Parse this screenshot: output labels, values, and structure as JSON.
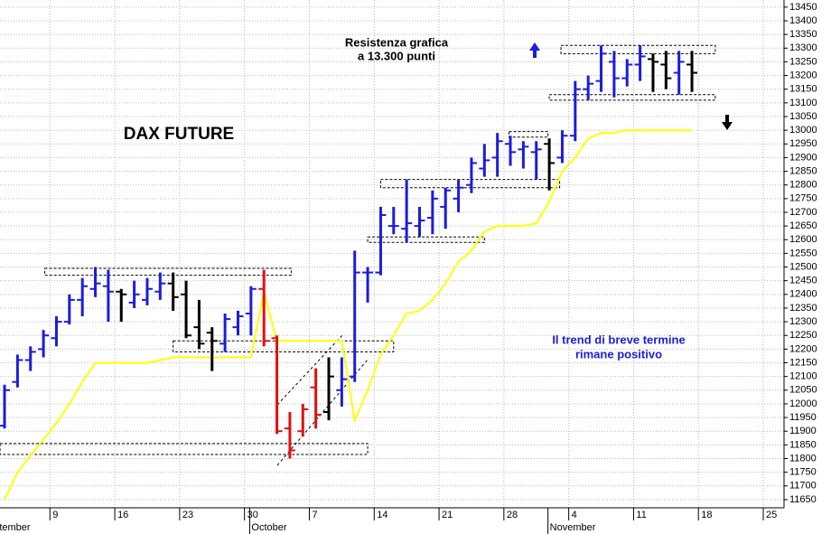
{
  "chart_data": {
    "type": "ohlc",
    "title": "DAX FUTURE",
    "categories": [
      null,
      null,
      null,
      null,
      null,
      null,
      null,
      null,
      null,
      null,
      null,
      null,
      null,
      null,
      null,
      null,
      null,
      null,
      null,
      null,
      null,
      null,
      null,
      null,
      null,
      null,
      null,
      null,
      null,
      null,
      null,
      null,
      null,
      null,
      null,
      null,
      null,
      null,
      null,
      null,
      null,
      null,
      null,
      null,
      null,
      null,
      null,
      null,
      null,
      null,
      null,
      null,
      null,
      null
    ],
    "open": [
      11920,
      12080,
      12160,
      12200,
      12240,
      12300,
      12380,
      12420,
      12430,
      12410,
      12370,
      12380,
      12410,
      12440,
      12400,
      12280,
      12260,
      12220,
      12280,
      12330,
      12420,
      12240,
      11910,
      11900,
      12060,
      11970,
      12050,
      12100,
      12480,
      12480,
      12650,
      12640,
      12650,
      12680,
      12720,
      12750,
      12800,
      12860,
      12900,
      12950,
      12930,
      12920,
      12950,
      12900,
      12980,
      13150,
      13180,
      13250,
      13190,
      13240,
      13260,
      13240,
      13210,
      13240
    ],
    "high": [
      12070,
      12180,
      12210,
      12270,
      12320,
      12400,
      12460,
      12500,
      12490,
      12420,
      12450,
      12460,
      12480,
      12480,
      12450,
      12380,
      12280,
      12330,
      12340,
      12430,
      12490,
      12250,
      11970,
      12000,
      12130,
      12170,
      12170,
      12560,
      12500,
      12720,
      12720,
      12820,
      12720,
      12780,
      12790,
      12820,
      12900,
      12950,
      12990,
      12980,
      12960,
      12960,
      12970,
      13000,
      13180,
      13200,
      13310,
      13290,
      13260,
      13310,
      13280,
      13290,
      13290,
      13290
    ],
    "low": [
      11910,
      12060,
      12120,
      12170,
      12210,
      12290,
      12320,
      12390,
      12300,
      12300,
      12350,
      12360,
      12380,
      12340,
      12240,
      12200,
      12120,
      12190,
      12250,
      12250,
      12210,
      11890,
      11800,
      11880,
      11910,
      11940,
      11990,
      12080,
      12370,
      12470,
      12620,
      12590,
      12610,
      12620,
      12640,
      12700,
      12770,
      12830,
      12830,
      12870,
      12860,
      12820,
      12780,
      12880,
      12960,
      13110,
      13140,
      13120,
      13160,
      13180,
      13140,
      13150,
      13130,
      13140
    ],
    "close": [
      12050,
      12160,
      12190,
      12250,
      12300,
      12380,
      12430,
      12440,
      12410,
      12400,
      12400,
      12420,
      12440,
      12390,
      12250,
      12220,
      12230,
      12310,
      12320,
      12420,
      12230,
      11900,
      11830,
      11980,
      11960,
      12100,
      12090,
      12480,
      12480,
      12690,
      12650,
      12660,
      12670,
      12750,
      12780,
      12790,
      12880,
      12890,
      12960,
      12920,
      12940,
      12930,
      12880,
      12980,
      13150,
      13170,
      13280,
      13190,
      13240,
      13270,
      13250,
      13190,
      13250,
      13210
    ],
    "colors": [
      "#1c1cdc",
      "#1c1cdc",
      "#1c1cdc",
      "#1c1cdc",
      "#1c1cdc",
      "#1c1cdc",
      "#1c1cdc",
      "#1c1cdc",
      "#1c1cdc",
      "#000000",
      "#1c1cdc",
      "#1c1cdc",
      "#1c1cdc",
      "#000000",
      "#000000",
      "#000000",
      "#000000",
      "#1c1cdc",
      "#1c1cdc",
      "#1c1cdc",
      "#e01010",
      "#e01010",
      "#e01010",
      "#e01010",
      "#e01010",
      "#000000",
      "#1c1cdc",
      "#1c1cdc",
      "#1c1cdc",
      "#1c1cdc",
      "#1c1cdc",
      "#1c1cdc",
      "#1c1cdc",
      "#1c1cdc",
      "#1c1cdc",
      "#1c1cdc",
      "#1c1cdc",
      "#1c1cdc",
      "#1c1cdc",
      "#1c1cdc",
      "#1c1cdc",
      "#1c1cdc",
      "#000000",
      "#1c1cdc",
      "#1c1cdc",
      "#1c1cdc",
      "#1c1cdc",
      "#1c1cdc",
      "#1c1cdc",
      "#1c1cdc",
      "#000000",
      "#000000",
      "#1c1cdc",
      "#000000"
    ],
    "trend_line": {
      "color": "#ffff00",
      "values": [
        11650,
        11750,
        11810,
        11870,
        11930,
        12000,
        12080,
        12150,
        12150,
        12150,
        12150,
        12150,
        12160,
        12170,
        12170,
        12170,
        12170,
        12170,
        12170,
        12170,
        12410,
        12230,
        12230,
        12230,
        12230,
        12230,
        12230,
        11940,
        12050,
        12180,
        12250,
        12330,
        12340,
        12380,
        12440,
        12520,
        12560,
        12630,
        12650,
        12650,
        12650,
        12660,
        12740,
        12850,
        12900,
        12970,
        12990,
        12990,
        13000,
        13000,
        13000,
        13000,
        13000,
        13000
      ]
    },
    "zones": [
      {
        "x": [
          3.1,
          22.1
        ],
        "y": [
          12470,
          12495
        ]
      },
      {
        "x": [
          13,
          30
        ],
        "y": [
          12190,
          12230
        ]
      },
      {
        "x": [
          -0.35,
          28
        ],
        "y": [
          11815,
          11855
        ]
      },
      {
        "x": [
          28,
          37
        ],
        "y": [
          12590,
          12610
        ]
      },
      {
        "x": [
          29,
          42.8
        ],
        "y": [
          12790,
          12820
        ]
      },
      {
        "x": [
          38.9,
          41.9
        ],
        "y": [
          12975,
          12995
        ]
      },
      {
        "x": [
          42.9,
          54.8
        ],
        "y": [
          13280,
          13310
        ]
      },
      {
        "x": [
          42,
          54.8
        ],
        "y": [
          13110,
          13130
        ]
      }
    ],
    "annotations": [
      {
        "lines": [
          "Resistenza grafica",
          "a 13.300 punti"
        ]
      },
      {
        "lines": [
          "Il trend di breve termine",
          "rimane positivo"
        ]
      }
    ],
    "xlim": [
      -0.35,
      60.1
    ],
    "xticks": [
      {
        "value": 3.5,
        "label": "9"
      },
      {
        "value": 8.5,
        "label": "16"
      },
      {
        "value": 13.5,
        "label": "23"
      },
      {
        "value": 18.5,
        "label": "30"
      },
      {
        "value": 23.5,
        "label": "7"
      },
      {
        "value": 28.5,
        "label": "14"
      },
      {
        "value": 33.5,
        "label": "21"
      },
      {
        "value": 38.5,
        "label": "28"
      },
      {
        "value": 43.5,
        "label": "4"
      },
      {
        "value": 48.5,
        "label": "11"
      },
      {
        "value": 53.5,
        "label": "18"
      },
      {
        "value": 58.5,
        "label": "25"
      }
    ],
    "month_ticks": [
      {
        "value": -1.9,
        "label": "September"
      },
      {
        "value": 18.9,
        "label": "October"
      },
      {
        "value": 41.9,
        "label": "November"
      }
    ],
    "ylim": [
      11620,
      13476
    ],
    "yticks": [
      11650,
      11700,
      11750,
      11800,
      11850,
      11900,
      11950,
      12000,
      12050,
      12100,
      12150,
      12200,
      12250,
      12300,
      12350,
      12400,
      12450,
      12500,
      12550,
      12600,
      12650,
      12700,
      12750,
      12800,
      12850,
      12900,
      12950,
      13000,
      13050,
      13100,
      13150,
      13200,
      13250,
      13300,
      13350,
      13400,
      13450
    ],
    "grid": true
  }
}
